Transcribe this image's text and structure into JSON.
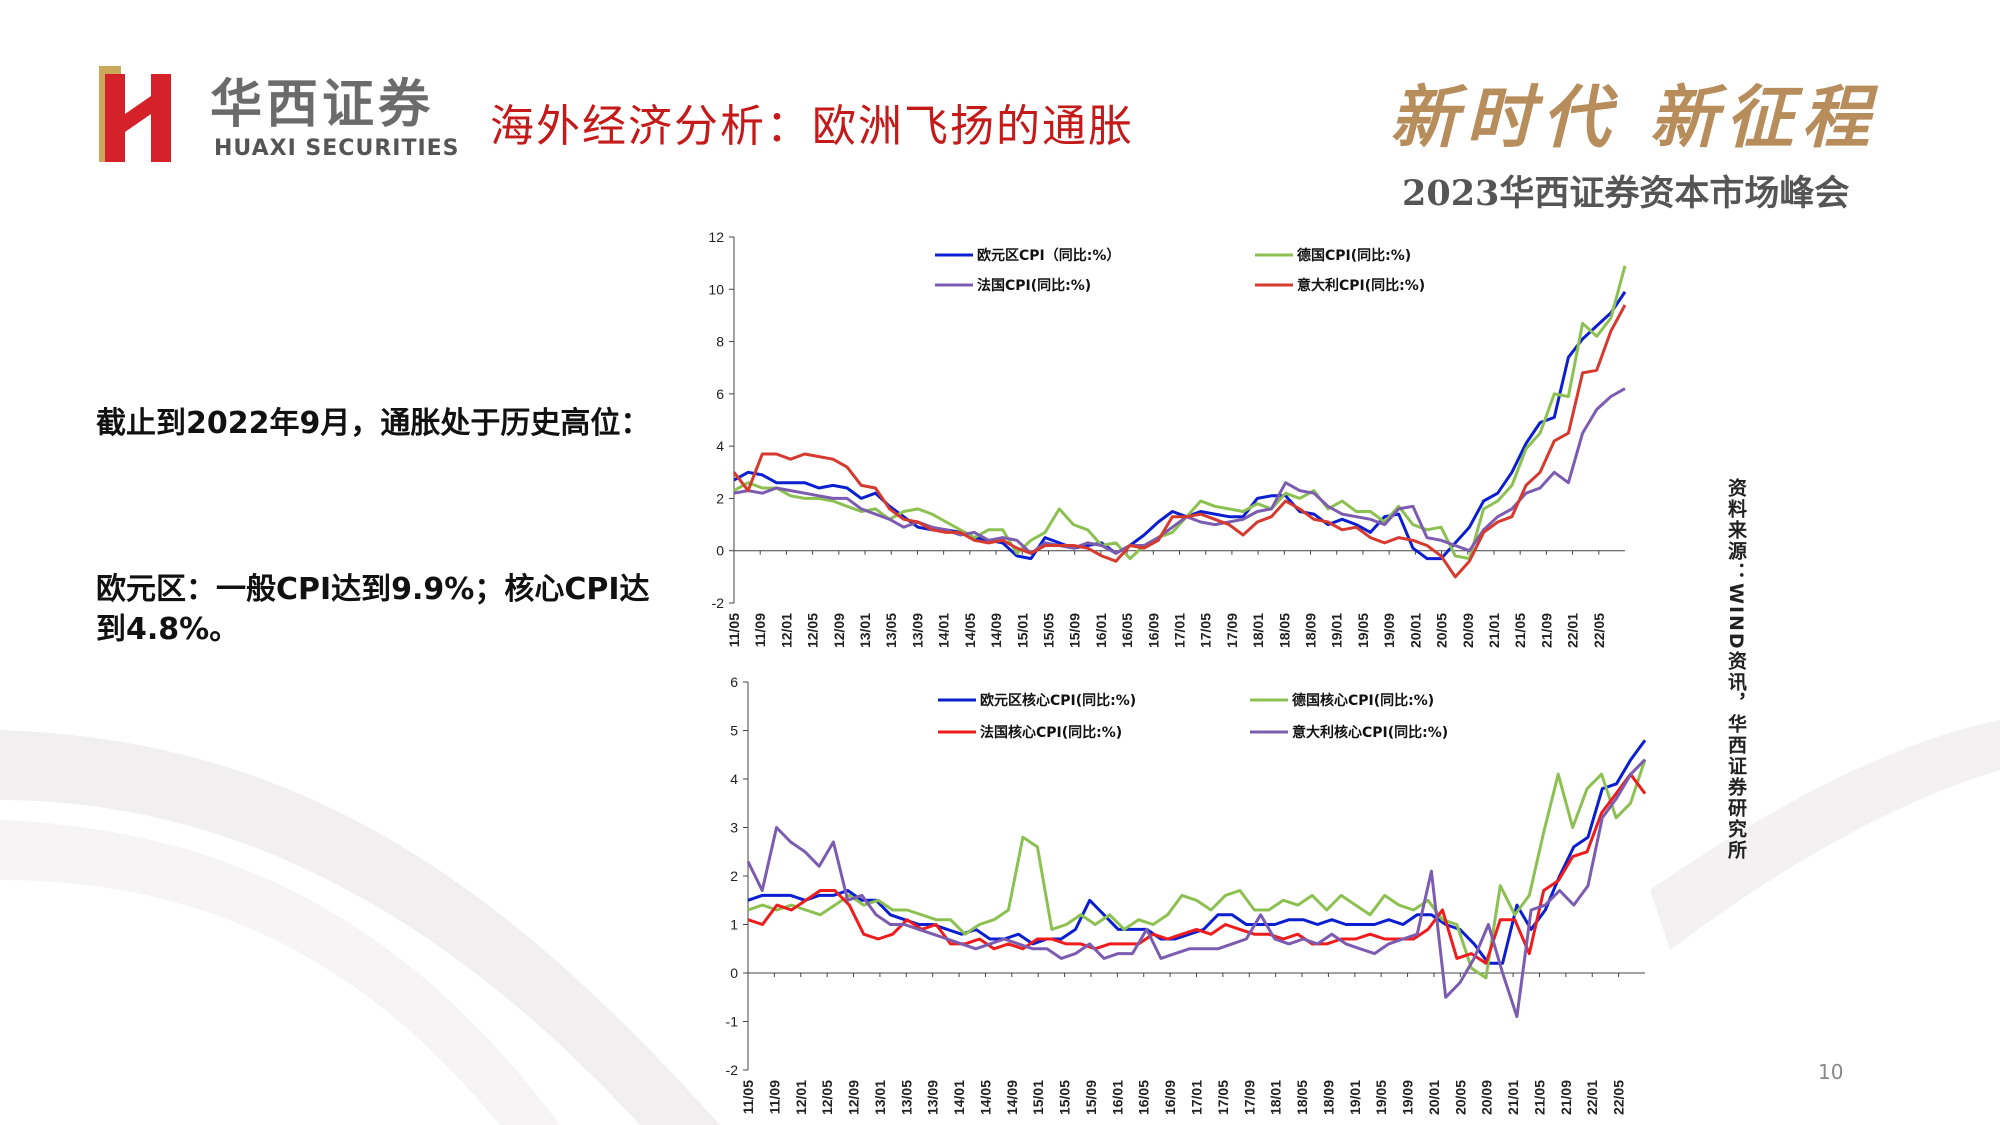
{
  "header": {
    "logo_cn": "华西证券",
    "logo_en": "HUAXI SECURITIES",
    "title": "海外经济分析：欧洲飞扬的通胀",
    "slogan": "新时代 新征程",
    "summit": "2023华西证券资本市场峰会"
  },
  "text": {
    "para1": "截止到2022年9月，通胀处于历史高位：",
    "para2": "欧元区：一般CPI达到9.9%；核心CPI达到4.8%。"
  },
  "source": "资料来源：WIND资讯，华西证券研究所",
  "page_number": "10",
  "colors": {
    "blue": "#0b1fd0",
    "green": "#8cc152",
    "purple": "#7c5cb0",
    "red": "#d63a2f",
    "red_bright": "#ee1c1c",
    "title_red": "#c41a1a",
    "gold": "#b78d5c"
  },
  "chart_data": [
    {
      "type": "line",
      "ylim": [
        -2,
        12
      ],
      "yticks": [
        "12",
        "10",
        "8",
        "6",
        "4",
        "2",
        "0",
        "-2"
      ],
      "xtick_labels": [
        "11/05",
        "11/09",
        "12/01",
        "12/05",
        "12/09",
        "13/01",
        "13/05",
        "13/09",
        "14/01",
        "14/05",
        "14/09",
        "15/01",
        "15/05",
        "15/09",
        "16/01",
        "16/05",
        "16/09",
        "17/01",
        "17/05",
        "17/09",
        "18/01",
        "18/05",
        "18/09",
        "19/01",
        "19/05",
        "19/09",
        "20/01",
        "20/05",
        "20/09",
        "21/01",
        "21/05",
        "21/09",
        "22/01",
        "22/05"
      ],
      "legend": [
        {
          "name": "欧元区CPI（同比:%）",
          "color": "#0b1fd0"
        },
        {
          "name": "德国CPI(同比:%)",
          "color": "#8cc152"
        },
        {
          "name": "法国CPI(同比:%)",
          "color": "#7c5cb0"
        },
        {
          "name": "意大利CPI(同比:%)",
          "color": "#d63a2f"
        }
      ],
      "x_start": "2011-05",
      "x_end": "2022-09",
      "series": [
        {
          "name": "欧元区CPI（同比:%）",
          "color": "#0b1fd0",
          "values": [
            2.7,
            3.0,
            2.9,
            2.6,
            2.6,
            2.6,
            2.4,
            2.5,
            2.4,
            2.0,
            2.2,
            1.7,
            1.3,
            0.9,
            0.8,
            0.8,
            0.7,
            0.5,
            0.4,
            0.3,
            -0.2,
            -0.3,
            0.5,
            0.3,
            0.1,
            0.2,
            0.3,
            -0.1,
            0.2,
            0.6,
            1.1,
            1.5,
            1.3,
            1.5,
            1.4,
            1.3,
            1.3,
            2.0,
            2.1,
            2.1,
            1.5,
            1.4,
            1.0,
            1.2,
            1.0,
            0.7,
            1.3,
            1.4,
            0.1,
            -0.3,
            -0.3,
            0.3,
            0.9,
            1.9,
            2.2,
            3.0,
            4.1,
            4.9,
            5.1,
            7.4,
            8.1,
            8.6,
            9.1,
            9.9
          ]
        },
        {
          "name": "德国CPI(同比:%)",
          "color": "#8cc152",
          "values": [
            2.3,
            2.6,
            2.4,
            2.4,
            2.1,
            2.0,
            2.0,
            1.9,
            1.7,
            1.5,
            1.6,
            1.2,
            1.5,
            1.6,
            1.4,
            1.1,
            0.8,
            0.5,
            0.8,
            0.8,
            -0.1,
            0.4,
            0.7,
            1.6,
            1.0,
            0.8,
            0.2,
            0.3,
            -0.3,
            0.2,
            0.5,
            0.7,
            1.3,
            1.9,
            1.7,
            1.6,
            1.5,
            1.8,
            1.6,
            2.2,
            2.0,
            2.3,
            1.6,
            1.9,
            1.5,
            1.5,
            1.1,
            1.7,
            1.0,
            0.8,
            0.9,
            -0.2,
            -0.3,
            1.6,
            1.9,
            2.5,
            3.9,
            4.5,
            6.0,
            5.9,
            8.7,
            8.2,
            8.9,
            10.9
          ]
        },
        {
          "name": "法国CPI(同比:%)",
          "color": "#7c5cb0",
          "values": [
            2.2,
            2.3,
            2.2,
            2.4,
            2.3,
            2.2,
            2.1,
            2.0,
            2.0,
            1.6,
            1.4,
            1.2,
            0.9,
            1.1,
            0.9,
            0.8,
            0.6,
            0.7,
            0.4,
            0.5,
            0.4,
            -0.1,
            0.3,
            0.2,
            0.1,
            0.3,
            0.2,
            -0.1,
            0.2,
            0.2,
            0.5,
            0.9,
            1.3,
            1.1,
            1.0,
            1.1,
            1.2,
            1.5,
            1.6,
            2.6,
            2.3,
            2.2,
            1.7,
            1.4,
            1.3,
            1.2,
            1.0,
            1.6,
            1.7,
            0.5,
            0.4,
            0.2,
            0.0,
            0.8,
            1.3,
            1.6,
            2.2,
            2.4,
            3.0,
            2.6,
            4.5,
            5.4,
            5.9,
            6.2
          ]
        },
        {
          "name": "意大利CPI(同比:%)",
          "color": "#d63a2f",
          "values": [
            3.0,
            2.3,
            3.7,
            3.7,
            3.5,
            3.7,
            3.6,
            3.5,
            3.2,
            2.5,
            2.4,
            1.6,
            1.2,
            1.1,
            0.8,
            0.7,
            0.7,
            0.4,
            0.3,
            0.4,
            0.1,
            -0.1,
            0.2,
            0.2,
            0.2,
            0.1,
            -0.2,
            -0.4,
            0.2,
            0.1,
            0.4,
            1.3,
            1.3,
            1.4,
            1.2,
            1.0,
            0.6,
            1.1,
            1.3,
            1.9,
            1.6,
            1.2,
            1.1,
            0.8,
            0.9,
            0.5,
            0.3,
            0.5,
            0.4,
            0.2,
            -0.2,
            -1.0,
            -0.4,
            0.7,
            1.1,
            1.3,
            2.5,
            3.0,
            4.2,
            4.5,
            6.8,
            6.9,
            8.4,
            9.4
          ]
        }
      ]
    },
    {
      "type": "line",
      "ylim": [
        -2,
        6
      ],
      "yticks": [
        "6",
        "5",
        "4",
        "3",
        "2",
        "1",
        "0",
        "-1",
        "-2"
      ],
      "xtick_labels": [
        "11/05",
        "11/09",
        "12/01",
        "12/05",
        "12/09",
        "13/01",
        "13/05",
        "13/09",
        "14/01",
        "14/05",
        "14/09",
        "15/01",
        "15/05",
        "15/09",
        "16/01",
        "16/05",
        "16/09",
        "17/01",
        "17/05",
        "17/09",
        "18/01",
        "18/05",
        "18/09",
        "19/01",
        "19/05",
        "19/09",
        "20/01",
        "20/05",
        "20/09",
        "21/01",
        "21/05",
        "21/09",
        "22/01",
        "22/05"
      ],
      "legend": [
        {
          "name": "欧元区核心CPI(同比:%)",
          "color": "#0b1fd0"
        },
        {
          "name": "德国核心CPI(同比:%)",
          "color": "#8cc152"
        },
        {
          "name": "法国核心CPI(同比:%)",
          "color": "#ee1c1c"
        },
        {
          "name": "意大利核心CPI(同比:%)",
          "color": "#7c5cb0"
        }
      ],
      "x_start": "2011-05",
      "x_end": "2022-09",
      "series": [
        {
          "name": "欧元区核心CPI(同比:%)",
          "color": "#0b1fd0",
          "values": [
            1.5,
            1.6,
            1.6,
            1.6,
            1.5,
            1.6,
            1.6,
            1.7,
            1.5,
            1.5,
            1.2,
            1.1,
            1.0,
            1.0,
            0.9,
            0.8,
            0.9,
            0.7,
            0.7,
            0.8,
            0.6,
            0.7,
            0.7,
            0.9,
            1.5,
            1.2,
            0.9,
            0.9,
            0.9,
            0.7,
            0.7,
            0.8,
            0.9,
            1.2,
            1.2,
            1.0,
            1.0,
            1.0,
            1.1,
            1.1,
            1.0,
            1.1,
            1.0,
            1.0,
            1.0,
            1.1,
            1.0,
            1.2,
            1.2,
            1.0,
            0.9,
            0.6,
            0.2,
            0.2,
            1.4,
            0.9,
            1.3,
            2.0,
            2.6,
            2.8,
            3.8,
            3.9,
            4.4,
            4.8
          ]
        },
        {
          "name": "德国核心CPI(同比:%)",
          "color": "#8cc152",
          "values": [
            1.3,
            1.4,
            1.3,
            1.4,
            1.3,
            1.2,
            1.4,
            1.6,
            1.4,
            1.5,
            1.3,
            1.3,
            1.2,
            1.1,
            1.1,
            0.8,
            1.0,
            1.1,
            1.3,
            2.8,
            2.6,
            0.9,
            1.0,
            1.2,
            1.0,
            1.2,
            0.9,
            1.1,
            1.0,
            1.2,
            1.6,
            1.5,
            1.3,
            1.6,
            1.7,
            1.3,
            1.3,
            1.5,
            1.4,
            1.6,
            1.3,
            1.6,
            1.4,
            1.2,
            1.6,
            1.4,
            1.3,
            1.5,
            1.1,
            1.0,
            0.1,
            -0.1,
            1.8,
            1.2,
            1.6,
            2.9,
            4.1,
            3.0,
            3.8,
            4.1,
            3.2,
            3.5,
            4.4
          ]
        },
        {
          "name": "法国核心CPI(同比:%)",
          "color": "#ee1c1c",
          "values": [
            1.1,
            1.0,
            1.4,
            1.3,
            1.5,
            1.7,
            1.7,
            1.4,
            0.8,
            0.7,
            0.8,
            1.1,
            0.9,
            1.0,
            0.6,
            0.6,
            0.7,
            0.5,
            0.6,
            0.5,
            0.7,
            0.7,
            0.6,
            0.6,
            0.5,
            0.6,
            0.6,
            0.6,
            0.8,
            0.7,
            0.8,
            0.9,
            0.8,
            1.0,
            0.9,
            0.8,
            0.8,
            0.7,
            0.8,
            0.6,
            0.6,
            0.7,
            0.7,
            0.8,
            0.7,
            0.7,
            0.7,
            0.9,
            1.3,
            0.3,
            0.4,
            0.2,
            1.1,
            1.1,
            0.4,
            1.7,
            1.9,
            2.4,
            2.5,
            3.3,
            3.7,
            4.1,
            3.7
          ]
        },
        {
          "name": "意大利核心CPI(同比:%)",
          "color": "#7c5cb0",
          "values": [
            2.3,
            1.7,
            3.0,
            2.7,
            2.5,
            2.2,
            2.7,
            1.5,
            1.6,
            1.2,
            1.0,
            1.0,
            0.9,
            0.8,
            0.7,
            0.6,
            0.5,
            0.6,
            0.7,
            0.6,
            0.5,
            0.5,
            0.3,
            0.4,
            0.6,
            0.3,
            0.4,
            0.4,
            0.9,
            0.3,
            0.4,
            0.5,
            0.5,
            0.5,
            0.6,
            0.7,
            1.2,
            0.7,
            0.6,
            0.7,
            0.6,
            0.8,
            0.6,
            0.5,
            0.4,
            0.6,
            0.7,
            0.8,
            2.1,
            -0.5,
            -0.2,
            0.3,
            1.0,
            0.0,
            -0.9,
            1.3,
            1.4,
            1.7,
            1.4,
            1.8,
            3.2,
            3.6,
            4.1,
            4.4
          ]
        }
      ]
    }
  ]
}
